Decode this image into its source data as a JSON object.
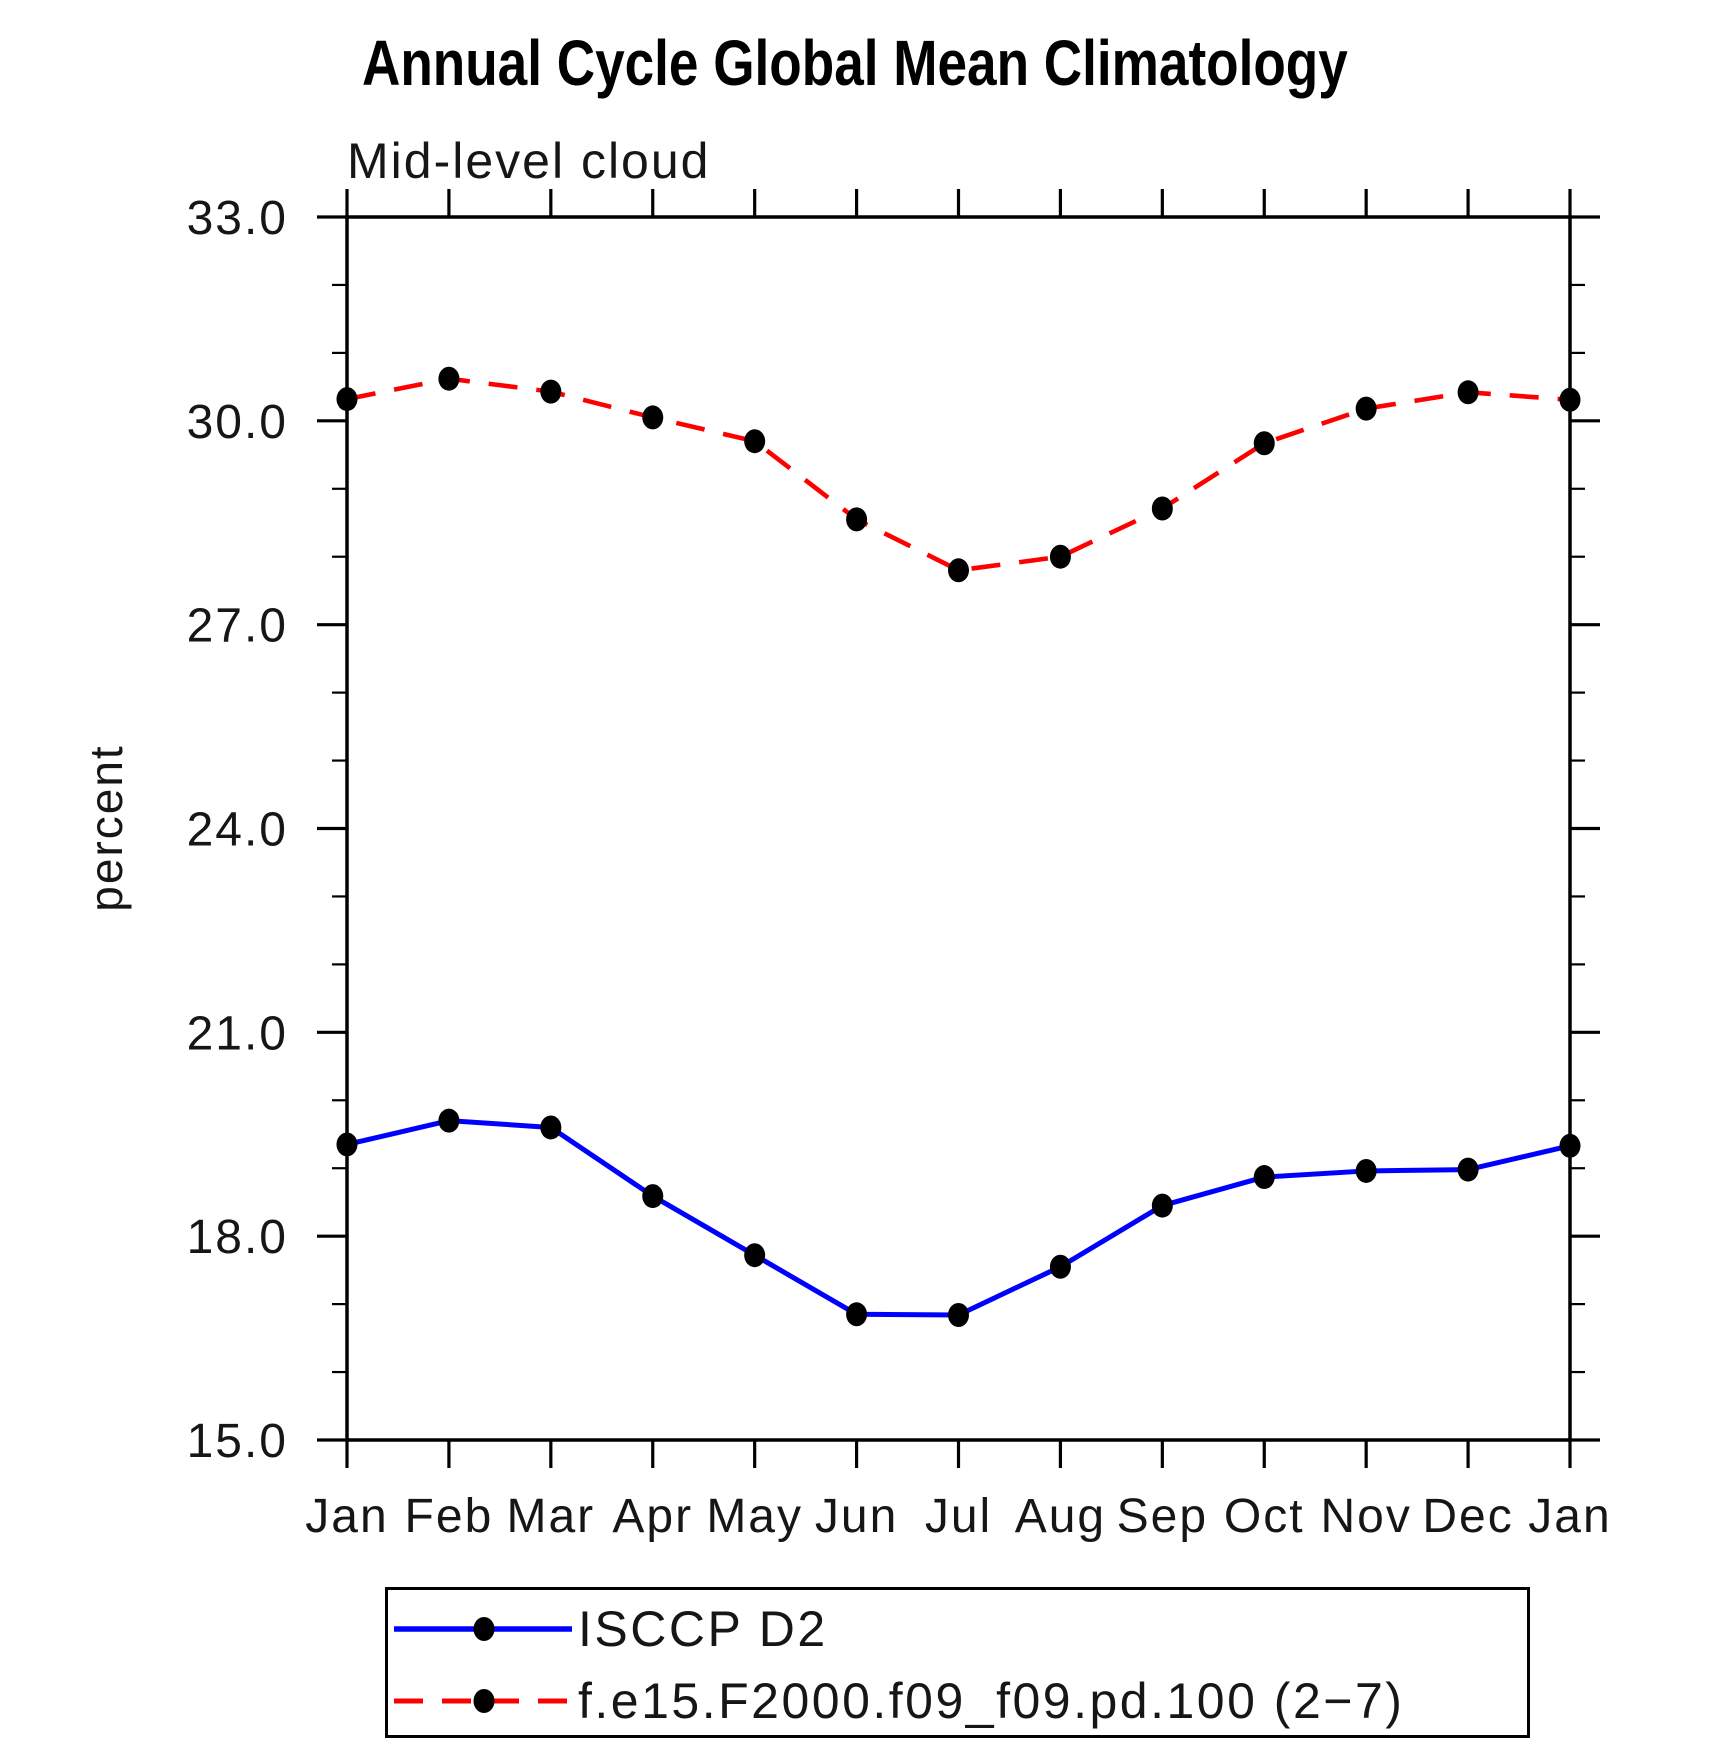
{
  "title": "Annual Cycle Global Mean Climatology",
  "chart_data": {
    "type": "line",
    "title": "Annual Cycle Global Mean Climatology",
    "subtitle": "Mid-level cloud",
    "xlabel": "",
    "ylabel": "percent",
    "categories": [
      "Jan",
      "Feb",
      "Mar",
      "Apr",
      "May",
      "Jun",
      "Jul",
      "Aug",
      "Sep",
      "Oct",
      "Nov",
      "Dec",
      "Jan"
    ],
    "ylim": [
      15.0,
      33.0
    ],
    "ytick_labels": [
      "15.0",
      "18.0",
      "21.0",
      "24.0",
      "27.0",
      "30.0",
      "33.0"
    ],
    "ytick_major_interval": 3.0,
    "ytick_minor_interval": 1.0,
    "grid": false,
    "legend_position": "bottom-left-box",
    "axis_color": "#000000",
    "marker_shape": "filled-ellipse",
    "series": [
      {
        "name": "ISCCP D2",
        "color": "#0000ff",
        "line_style": "solid",
        "marker_color": "#000000",
        "values": [
          19.35,
          19.7,
          19.6,
          18.59,
          17.72,
          16.85,
          16.84,
          17.55,
          18.45,
          18.87,
          18.96,
          18.98,
          19.33
        ]
      },
      {
        "name": "f.e15.F2000.f09_f09.pd.100 (2−7)",
        "color": "#ff0000",
        "line_style": "dashed",
        "marker_color": "#000000",
        "values": [
          30.32,
          30.62,
          30.43,
          30.05,
          29.7,
          28.55,
          27.8,
          28.0,
          28.71,
          29.67,
          30.18,
          30.42,
          30.31
        ]
      }
    ]
  }
}
